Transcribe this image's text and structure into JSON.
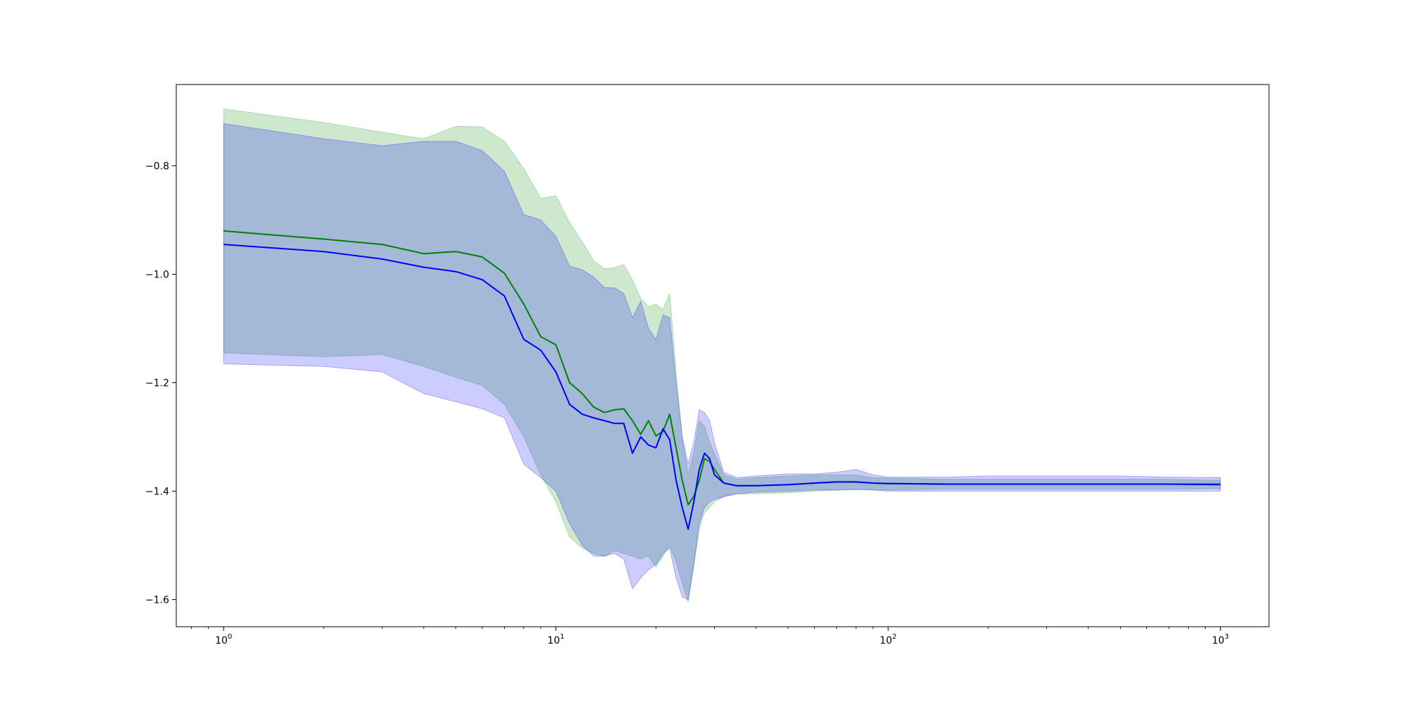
{
  "chart_data": {
    "type": "line",
    "title": "",
    "xlabel": "",
    "ylabel": "",
    "x_scale": "log",
    "xlim": [
      0.72,
      1400
    ],
    "ylim": [
      -1.65,
      -0.65
    ],
    "grid": false,
    "x_ticks": [
      {
        "value": 1,
        "mantissa": "10",
        "exponent": "0"
      },
      {
        "value": 10,
        "mantissa": "10",
        "exponent": "1"
      },
      {
        "value": 100,
        "mantissa": "10",
        "exponent": "2"
      },
      {
        "value": 1000,
        "mantissa": "10",
        "exponent": "3"
      }
    ],
    "y_ticks": [
      {
        "value": -0.8,
        "label": "−0.8"
      },
      {
        "value": -1.0,
        "label": "−1.0"
      },
      {
        "value": -1.2,
        "label": "−1.2"
      },
      {
        "value": -1.4,
        "label": "−1.4"
      },
      {
        "value": -1.6,
        "label": "−1.6"
      }
    ],
    "series": [
      {
        "color": "#008000",
        "band_color": "#2ca02c",
        "band_opacity": 0.24,
        "x": [
          1,
          2,
          3,
          4,
          5,
          6,
          7,
          8,
          9,
          10,
          11,
          12,
          13,
          14,
          15,
          16,
          17,
          18,
          19,
          20,
          21,
          22,
          23,
          24,
          25,
          26,
          27,
          28,
          29,
          30,
          32,
          35,
          40,
          50,
          60,
          70,
          80,
          90,
          100,
          150,
          200,
          300,
          500,
          700,
          1000
        ],
        "values": [
          -0.92,
          -0.935,
          -0.945,
          -0.962,
          -0.958,
          -0.968,
          -0.998,
          -1.055,
          -1.115,
          -1.13,
          -1.2,
          -1.22,
          -1.245,
          -1.255,
          -1.25,
          -1.248,
          -1.27,
          -1.295,
          -1.27,
          -1.298,
          -1.29,
          -1.258,
          -1.32,
          -1.38,
          -1.425,
          -1.41,
          -1.38,
          -1.34,
          -1.345,
          -1.36,
          -1.385,
          -1.39,
          -1.39,
          -1.388,
          -1.385,
          -1.383,
          -1.383,
          -1.385,
          -1.386,
          -1.387,
          -1.387,
          -1.387,
          -1.387,
          -1.387,
          -1.387
        ],
        "upper": [
          -0.695,
          -0.72,
          -0.738,
          -0.75,
          -0.727,
          -0.728,
          -0.755,
          -0.805,
          -0.86,
          -0.855,
          -0.905,
          -0.94,
          -0.975,
          -0.99,
          -0.988,
          -0.982,
          -1.01,
          -1.045,
          -1.06,
          -1.055,
          -1.065,
          -1.035,
          -1.18,
          -1.3,
          -1.37,
          -1.33,
          -1.27,
          -1.28,
          -1.31,
          -1.33,
          -1.37,
          -1.378,
          -1.375,
          -1.372,
          -1.37,
          -1.37,
          -1.37,
          -1.375,
          -1.376,
          -1.378,
          -1.378,
          -1.378,
          -1.378,
          -1.378,
          -1.38
        ],
        "lower": [
          -1.145,
          -1.152,
          -1.148,
          -1.17,
          -1.19,
          -1.205,
          -1.24,
          -1.3,
          -1.37,
          -1.42,
          -1.485,
          -1.505,
          -1.515,
          -1.52,
          -1.51,
          -1.515,
          -1.52,
          -1.525,
          -1.52,
          -1.54,
          -1.52,
          -1.5,
          -1.53,
          -1.57,
          -1.605,
          -1.54,
          -1.47,
          -1.44,
          -1.43,
          -1.42,
          -1.41,
          -1.405,
          -1.405,
          -1.403,
          -1.4,
          -1.398,
          -1.396,
          -1.397,
          -1.398,
          -1.396,
          -1.396,
          -1.396,
          -1.396,
          -1.396,
          -1.395
        ]
      },
      {
        "color": "#0000ff",
        "band_color": "#0000ff",
        "band_opacity": 0.2,
        "x": [
          1,
          2,
          3,
          4,
          5,
          6,
          7,
          8,
          9,
          10,
          11,
          12,
          13,
          14,
          15,
          16,
          17,
          18,
          19,
          20,
          21,
          22,
          23,
          24,
          25,
          26,
          27,
          28,
          29,
          30,
          32,
          35,
          40,
          50,
          60,
          70,
          80,
          90,
          100,
          150,
          200,
          300,
          500,
          700,
          1000
        ],
        "values": [
          -0.945,
          -0.958,
          -0.972,
          -0.987,
          -0.995,
          -1.01,
          -1.04,
          -1.12,
          -1.14,
          -1.18,
          -1.24,
          -1.258,
          -1.265,
          -1.27,
          -1.275,
          -1.275,
          -1.33,
          -1.3,
          -1.315,
          -1.32,
          -1.285,
          -1.305,
          -1.38,
          -1.43,
          -1.47,
          -1.42,
          -1.36,
          -1.33,
          -1.34,
          -1.37,
          -1.385,
          -1.39,
          -1.39,
          -1.388,
          -1.385,
          -1.383,
          -1.383,
          -1.385,
          -1.386,
          -1.387,
          -1.387,
          -1.387,
          -1.387,
          -1.387,
          -1.388
        ],
        "upper": [
          -0.722,
          -0.75,
          -0.763,
          -0.755,
          -0.755,
          -0.772,
          -0.81,
          -0.89,
          -0.9,
          -0.93,
          -0.985,
          -0.992,
          -1.005,
          -1.025,
          -1.025,
          -1.035,
          -1.08,
          -1.05,
          -1.1,
          -1.12,
          -1.075,
          -1.08,
          -1.2,
          -1.3,
          -1.35,
          -1.31,
          -1.25,
          -1.255,
          -1.27,
          -1.31,
          -1.365,
          -1.375,
          -1.372,
          -1.368,
          -1.368,
          -1.365,
          -1.36,
          -1.37,
          -1.374,
          -1.374,
          -1.372,
          -1.372,
          -1.372,
          -1.374,
          -1.375
        ],
        "lower": [
          -1.165,
          -1.17,
          -1.18,
          -1.22,
          -1.235,
          -1.248,
          -1.265,
          -1.35,
          -1.375,
          -1.4,
          -1.46,
          -1.5,
          -1.52,
          -1.52,
          -1.515,
          -1.525,
          -1.58,
          -1.56,
          -1.545,
          -1.535,
          -1.515,
          -1.505,
          -1.56,
          -1.595,
          -1.6,
          -1.535,
          -1.46,
          -1.43,
          -1.42,
          -1.415,
          -1.41,
          -1.405,
          -1.402,
          -1.4,
          -1.398,
          -1.398,
          -1.397,
          -1.398,
          -1.4,
          -1.4,
          -1.4,
          -1.4,
          -1.4,
          -1.4,
          -1.4
        ]
      }
    ]
  }
}
